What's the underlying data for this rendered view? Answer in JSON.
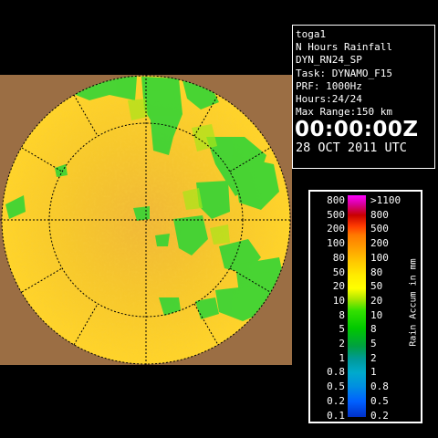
{
  "info": {
    "site": "toga1",
    "product": "N Hours Rainfall",
    "product_id": "DYN_RN24_SP",
    "task": "Task: DYNAMO_F15",
    "prf": "PRF: 1000Hz",
    "hours": "Hours:24/24",
    "max_range": "Max Range:150 km",
    "time": "00:00:00Z",
    "date": "28 OCT 2011 UTC"
  },
  "legend": {
    "left_labels": [
      "800",
      "500",
      "200",
      "100",
      "80",
      "50",
      "20",
      "10",
      "8",
      "5",
      "2",
      "1",
      "0.8",
      "0.5",
      "0.2",
      "0.1"
    ],
    "right_labels": [
      ">1100",
      "800",
      "500",
      "200",
      "100",
      "80",
      "50",
      "20",
      "10",
      "8",
      "5",
      "2",
      "1",
      "0.8",
      "0.5",
      "0.2"
    ],
    "axis_label": "Rain Accum in mm"
  },
  "colors": {
    "background": "#000000",
    "land": "#9b6e44",
    "rain_low": "#f2c930",
    "rain_mid": "#ffd400",
    "rain_high": "#33d633",
    "range_rings": "#000000"
  }
}
